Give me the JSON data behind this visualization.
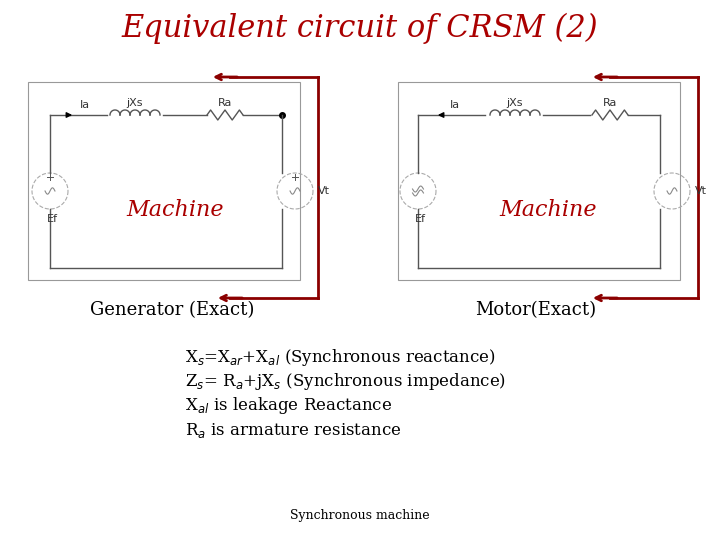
{
  "title": "Equivalent circuit of CRSM (2)",
  "title_color": "#aa0000",
  "title_fontsize": 22,
  "bg_color": "#ffffff",
  "machine_label": "Machine",
  "machine_color": "#aa0000",
  "machine_fontsize": 16,
  "generator_label": "Generator (Exact)",
  "motor_label": "Motor(Exact)",
  "label_fontsize": 13,
  "eq_fontsize": 12,
  "footer_fontsize": 9,
  "footer": "Synchronous machine",
  "red_color": "#8b0000",
  "circuit_color": "#555555",
  "lw_circuit": 1.0,
  "lw_red": 2.0
}
